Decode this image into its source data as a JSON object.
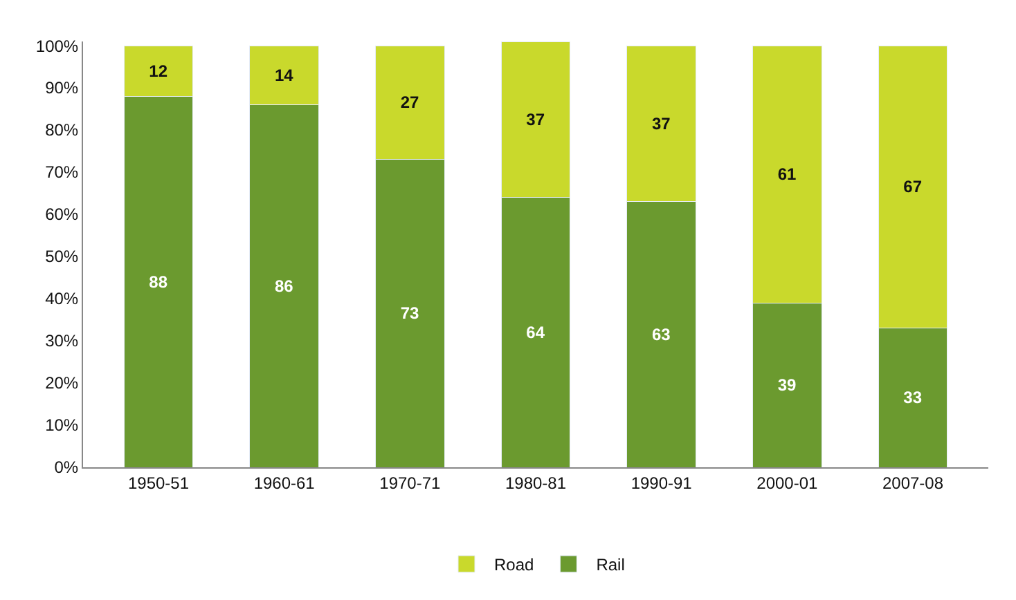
{
  "chart_data": {
    "type": "bar",
    "stacked": true,
    "categories": [
      "1950-51",
      "1960-61",
      "1970-71",
      "1980-81",
      "1990-91",
      "2000-01",
      "2007-08"
    ],
    "series": [
      {
        "name": "Rail",
        "color": "#6b9a2f",
        "values": [
          88,
          86,
          73,
          64,
          63,
          39,
          33
        ]
      },
      {
        "name": "Road",
        "color": "#c9d92c",
        "values": [
          12,
          14,
          27,
          37,
          37,
          61,
          67
        ]
      }
    ],
    "data_labels": true,
    "legend": "bottom",
    "grid": false,
    "ylim": [
      0,
      101
    ],
    "yticks": [
      {
        "value": 0,
        "label": "0%"
      },
      {
        "value": 10,
        "label": "10%"
      },
      {
        "value": 20,
        "label": "20%"
      },
      {
        "value": 30,
        "label": "30%"
      },
      {
        "value": 40,
        "label": "40%"
      },
      {
        "value": 50,
        "label": "50%"
      },
      {
        "value": 60,
        "label": "60%"
      },
      {
        "value": 70,
        "label": "70%"
      },
      {
        "value": 80,
        "label": "80%"
      },
      {
        "value": 90,
        "label": "90%"
      },
      {
        "value": 100,
        "label": "100%"
      }
    ]
  }
}
